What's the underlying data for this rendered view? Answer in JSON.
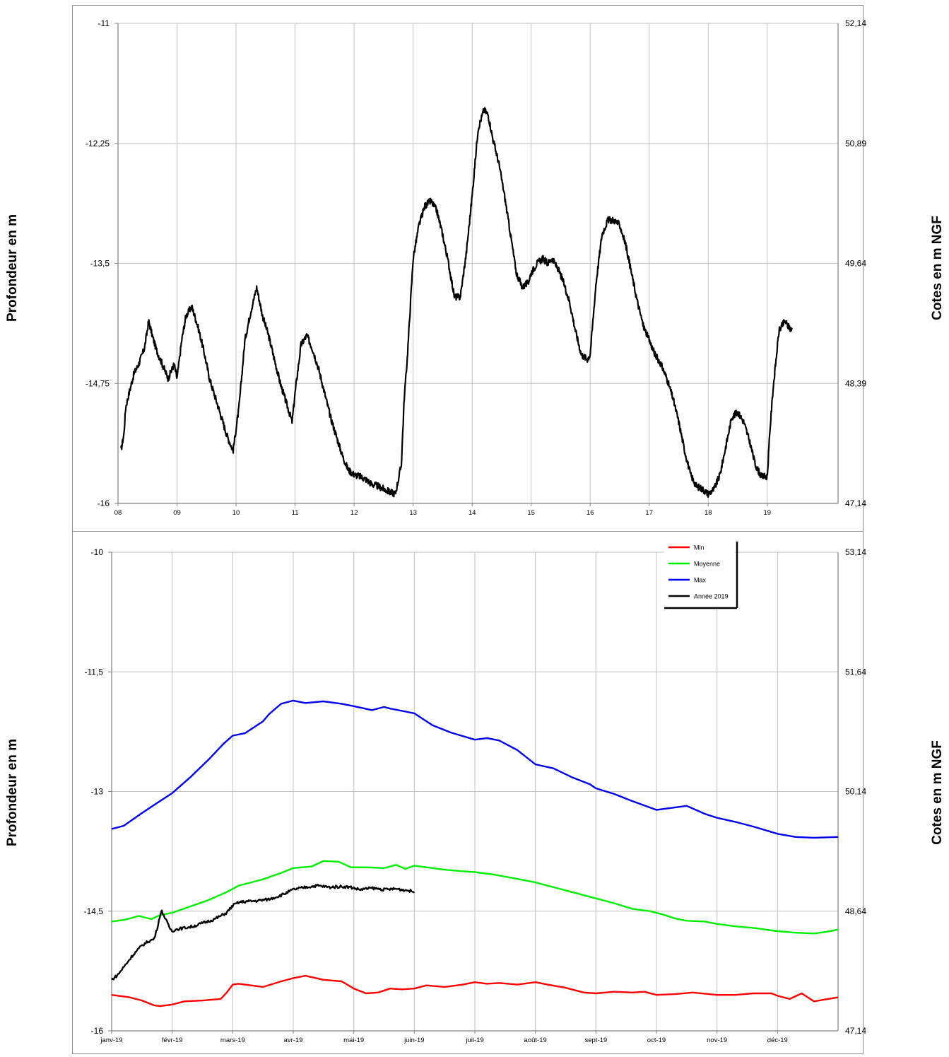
{
  "colors": {
    "grid": "#c0c0c0",
    "axis": "#808080",
    "min": "#ff0000",
    "moyenne": "#00ee00",
    "max": "#0000ee",
    "annee": "#000000"
  },
  "chart_data": [
    {
      "type": "line",
      "title": "",
      "ylabel": "Profondeur en m",
      "y2label": "Cotes en m NGF",
      "x_ticks": [
        "08",
        "09",
        "10",
        "11",
        "12",
        "13",
        "14",
        "15",
        "16",
        "17",
        "18",
        "19"
      ],
      "xlim": [
        2008,
        2020.2
      ],
      "ylim": [
        -16,
        -11
      ],
      "y_ticks": [
        "-11",
        "-12,25",
        "-13,5",
        "-14,75",
        "-16"
      ],
      "y2_ticks": [
        "52,14",
        "50,89",
        "49,64",
        "48,39",
        "47,14"
      ],
      "grid": true,
      "legend": "none",
      "series": [
        {
          "x": [
            2008.05,
            2008.1,
            2008.13,
            2008.2,
            2008.27,
            2008.35,
            2008.45,
            2008.52,
            2008.58,
            2008.65,
            2008.75,
            2008.85,
            2008.95,
            2009.0,
            2009.08,
            2009.15,
            2009.25,
            2009.35,
            2009.45,
            2009.55,
            2009.65,
            2009.75,
            2009.85,
            2009.95,
            2010.05,
            2010.15,
            2010.25,
            2010.35,
            2010.45,
            2010.55,
            2010.65,
            2010.75,
            2010.85,
            2010.95,
            2011.0,
            2011.1,
            2011.2,
            2011.3,
            2011.4,
            2011.5,
            2011.6,
            2011.7,
            2011.8,
            2011.9,
            2012.0,
            2012.1,
            2012.2,
            2012.3,
            2012.4,
            2012.5,
            2012.6,
            2012.7,
            2012.8,
            2012.85,
            2012.9,
            2013.0,
            2013.1,
            2013.2,
            2013.3,
            2013.4,
            2013.5,
            2013.6,
            2013.7,
            2013.8,
            2013.9,
            2014.0,
            2014.1,
            2014.2,
            2014.27,
            2014.35,
            2014.45,
            2014.55,
            2014.65,
            2014.75,
            2014.85,
            2014.95,
            2015.0,
            2015.1,
            2015.2,
            2015.28,
            2015.35,
            2015.45,
            2015.55,
            2015.65,
            2015.75,
            2015.85,
            2015.95,
            2016.0,
            2016.1,
            2016.2,
            2016.3,
            2016.4,
            2016.5,
            2016.6,
            2016.7,
            2016.8,
            2016.9,
            2017.0,
            2017.1,
            2017.2,
            2017.3,
            2017.4,
            2017.5,
            2017.6,
            2017.7,
            2017.8,
            2017.9,
            2018.0,
            2018.1,
            2018.2,
            2018.3,
            2018.4,
            2018.5,
            2018.6,
            2018.7,
            2018.8,
            2018.9,
            2019.0,
            2019.05,
            2019.1,
            2019.15,
            2019.2,
            2019.25,
            2019.3,
            2019.35,
            2019.42
          ],
          "values": [
            -15.45,
            -15.28,
            -15.0,
            -14.82,
            -14.65,
            -14.55,
            -14.38,
            -14.1,
            -14.25,
            -14.4,
            -14.55,
            -14.7,
            -14.55,
            -14.7,
            -14.3,
            -14.05,
            -13.95,
            -14.15,
            -14.4,
            -14.7,
            -14.9,
            -15.1,
            -15.3,
            -15.45,
            -15.0,
            -14.3,
            -14.0,
            -13.75,
            -14.05,
            -14.25,
            -14.5,
            -14.75,
            -14.95,
            -15.15,
            -14.85,
            -14.35,
            -14.25,
            -14.4,
            -14.6,
            -14.85,
            -15.1,
            -15.3,
            -15.5,
            -15.65,
            -15.7,
            -15.72,
            -15.75,
            -15.8,
            -15.82,
            -15.85,
            -15.88,
            -15.9,
            -15.6,
            -14.9,
            -14.5,
            -13.45,
            -13.1,
            -12.9,
            -12.85,
            -12.95,
            -13.2,
            -13.5,
            -13.85,
            -13.85,
            -13.4,
            -12.8,
            -12.1,
            -11.9,
            -11.95,
            -12.2,
            -12.45,
            -12.8,
            -13.2,
            -13.6,
            -13.75,
            -13.7,
            -13.6,
            -13.5,
            -13.45,
            -13.5,
            -13.45,
            -13.55,
            -13.7,
            -13.9,
            -14.2,
            -14.45,
            -14.5,
            -14.45,
            -13.7,
            -13.2,
            -13.05,
            -13.05,
            -13.1,
            -13.3,
            -13.6,
            -13.9,
            -14.15,
            -14.3,
            -14.45,
            -14.55,
            -14.7,
            -14.9,
            -15.15,
            -15.45,
            -15.7,
            -15.82,
            -15.85,
            -15.9,
            -15.85,
            -15.7,
            -15.4,
            -15.1,
            -15.05,
            -15.15,
            -15.35,
            -15.6,
            -15.72,
            -15.72,
            -15.2,
            -14.8,
            -14.5,
            -14.2,
            -14.15,
            -14.1,
            -14.15,
            -14.2
          ],
          "noise": true
        }
      ]
    },
    {
      "type": "line",
      "title": "",
      "ylabel": "Profondeur en m",
      "y2label": "Cotes en m NGF",
      "x_ticks": [
        "janv-19",
        "févr-19",
        "mars-19",
        "avr-19",
        "mai-19",
        "juin-19",
        "juil-19",
        "août-19",
        "sept-19",
        "oct-19",
        "nov-19",
        "déc-19"
      ],
      "xlim": [
        0,
        12
      ],
      "ylim": [
        -16,
        -10
      ],
      "y_ticks": [
        "-10",
        "-11,5",
        "-13",
        "-14,5",
        "-16"
      ],
      "y2_ticks": [
        "53,14",
        "51,64",
        "50,14",
        "48,64",
        "47,14"
      ],
      "grid": true,
      "legend": "top-right",
      "series": [
        {
          "name": "Min",
          "key": "min",
          "x": [
            0,
            0.3,
            0.5,
            0.7,
            0.8,
            1.0,
            1.2,
            1.5,
            1.8,
            1.9,
            2.0,
            2.1,
            2.3,
            2.5,
            2.8,
            3.0,
            3.2,
            3.5,
            3.8,
            4.0,
            4.2,
            4.4,
            4.6,
            4.8,
            5.0,
            5.2,
            5.5,
            5.8,
            6.0,
            6.2,
            6.4,
            6.7,
            7.0,
            7.2,
            7.5,
            7.8,
            8.0,
            8.3,
            8.6,
            8.8,
            9.0,
            9.3,
            9.6,
            10.0,
            10.3,
            10.6,
            10.9,
            11.0,
            11.2,
            11.4,
            11.6,
            12.0
          ],
          "values": [
            -15.55,
            -15.58,
            -15.62,
            -15.68,
            -15.69,
            -15.67,
            -15.63,
            -15.62,
            -15.6,
            -15.52,
            -15.42,
            -15.41,
            -15.43,
            -15.45,
            -15.38,
            -15.34,
            -15.31,
            -15.36,
            -15.38,
            -15.47,
            -15.53,
            -15.52,
            -15.47,
            -15.48,
            -15.47,
            -15.43,
            -15.45,
            -15.42,
            -15.39,
            -15.41,
            -15.4,
            -15.42,
            -15.39,
            -15.42,
            -15.46,
            -15.52,
            -15.53,
            -15.51,
            -15.52,
            -15.51,
            -15.55,
            -15.54,
            -15.52,
            -15.55,
            -15.55,
            -15.53,
            -15.53,
            -15.56,
            -15.6,
            -15.53,
            -15.63,
            -15.58
          ]
        },
        {
          "name": "Moyenne",
          "key": "moyenne",
          "x": [
            0,
            0.2,
            0.45,
            0.65,
            0.8,
            1.0,
            1.3,
            1.6,
            1.9,
            2.1,
            2.5,
            2.8,
            3.0,
            3.3,
            3.5,
            3.75,
            3.95,
            4.2,
            4.5,
            4.7,
            4.85,
            5.0,
            5.2,
            5.5,
            5.8,
            6.0,
            6.3,
            6.6,
            7.0,
            7.3,
            7.6,
            8.0,
            8.3,
            8.6,
            8.9,
            9.1,
            9.3,
            9.5,
            9.8,
            10.0,
            10.3,
            10.6,
            11.0,
            11.3,
            11.6,
            11.8,
            12.0
          ],
          "values": [
            -14.63,
            -14.61,
            -14.56,
            -14.6,
            -14.55,
            -14.52,
            -14.44,
            -14.36,
            -14.26,
            -14.18,
            -14.1,
            -14.02,
            -13.96,
            -13.94,
            -13.87,
            -13.88,
            -13.95,
            -13.95,
            -13.96,
            -13.92,
            -13.97,
            -13.93,
            -13.95,
            -13.98,
            -14.0,
            -14.01,
            -14.04,
            -14.08,
            -14.14,
            -14.2,
            -14.26,
            -14.34,
            -14.4,
            -14.47,
            -14.5,
            -14.54,
            -14.59,
            -14.62,
            -14.63,
            -14.66,
            -14.69,
            -14.71,
            -14.75,
            -14.77,
            -14.78,
            -14.76,
            -14.73
          ]
        },
        {
          "name": "Max",
          "key": "max",
          "x": [
            0,
            0.2,
            0.5,
            0.8,
            1.0,
            1.3,
            1.6,
            1.85,
            2.0,
            2.2,
            2.5,
            2.6,
            2.8,
            3.0,
            3.2,
            3.5,
            3.8,
            4.0,
            4.3,
            4.5,
            4.6,
            4.8,
            5.0,
            5.3,
            5.6,
            6.0,
            6.2,
            6.4,
            6.7,
            7.0,
            7.3,
            7.6,
            7.9,
            8.0,
            8.3,
            8.6,
            9.0,
            9.3,
            9.5,
            9.8,
            10.0,
            10.3,
            10.6,
            11.0,
            11.3,
            11.6,
            12.0
          ],
          "values": [
            -13.47,
            -13.43,
            -13.27,
            -13.12,
            -13.02,
            -12.82,
            -12.6,
            -12.4,
            -12.3,
            -12.27,
            -12.12,
            -12.03,
            -11.9,
            -11.86,
            -11.89,
            -11.87,
            -11.9,
            -11.93,
            -11.98,
            -11.94,
            -11.96,
            -11.99,
            -12.02,
            -12.17,
            -12.26,
            -12.35,
            -12.33,
            -12.36,
            -12.48,
            -12.66,
            -12.71,
            -12.82,
            -12.91,
            -12.96,
            -13.03,
            -13.12,
            -13.23,
            -13.2,
            -13.18,
            -13.28,
            -13.33,
            -13.38,
            -13.44,
            -13.53,
            -13.57,
            -13.58,
            -13.57
          ]
        },
        {
          "name": "Année 2019",
          "key": "annee",
          "x": [
            0,
            0.1,
            0.2,
            0.35,
            0.5,
            0.6,
            0.7,
            0.75,
            0.8,
            0.83,
            0.88,
            0.95,
            1.0,
            1.05,
            1.2,
            1.35,
            1.5,
            1.7,
            1.9,
            2.0,
            2.1,
            2.2,
            2.4,
            2.6,
            2.8,
            3.0,
            3.2,
            3.4,
            3.6,
            3.8,
            3.95,
            4.1,
            4.3,
            4.5,
            4.7,
            4.9,
            5.0
          ],
          "values": [
            -15.36,
            -15.3,
            -15.2,
            -15.05,
            -14.93,
            -14.88,
            -14.85,
            -14.72,
            -14.55,
            -14.5,
            -14.58,
            -14.7,
            -14.75,
            -14.73,
            -14.71,
            -14.69,
            -14.65,
            -14.6,
            -14.52,
            -14.43,
            -14.39,
            -14.38,
            -14.37,
            -14.35,
            -14.3,
            -14.23,
            -14.2,
            -14.18,
            -14.2,
            -14.19,
            -14.2,
            -14.23,
            -14.21,
            -14.23,
            -14.22,
            -14.24,
            -14.26
          ],
          "noise": true
        }
      ]
    }
  ]
}
